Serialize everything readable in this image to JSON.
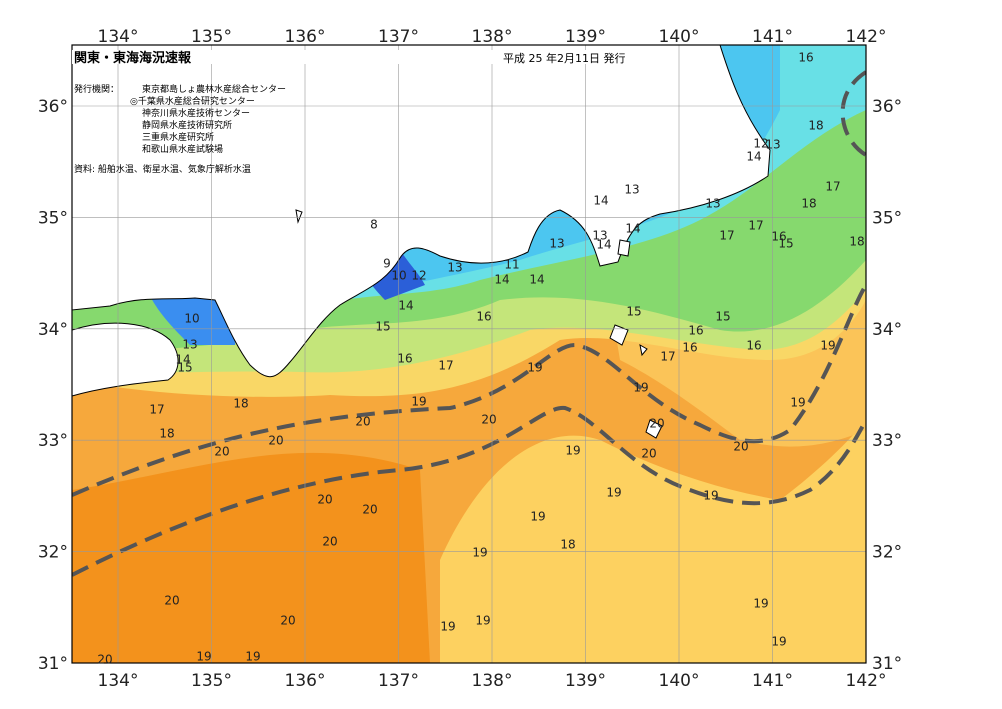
{
  "header": {
    "title": "関東・東海海況速報",
    "date": "平成 25 年2月11日 発行",
    "issuer_label": "発行機関：",
    "issuers": [
      "東京都島しょ農林水産総合センター",
      "◎千葉県水産総合研究センター",
      "神奈川県水産技術センター",
      "静岡県水産技術研究所",
      "三重県水産研究所",
      "和歌山県水産試験場"
    ],
    "source": "資料: 船舶水温、衛星水温、気象庁解析水温"
  },
  "map": {
    "lon_ticks": [
      {
        "value": 134,
        "label": "134°"
      },
      {
        "value": 135,
        "label": "135°"
      },
      {
        "value": 136,
        "label": "136°"
      },
      {
        "value": 137,
        "label": "137°"
      },
      {
        "value": 138,
        "label": "138°"
      },
      {
        "value": 139,
        "label": "139°"
      },
      {
        "value": 140,
        "label": "140°"
      },
      {
        "value": 141,
        "label": "141°"
      },
      {
        "value": 142,
        "label": "142°"
      }
    ],
    "lat_ticks": [
      {
        "value": 31,
        "label": "31°"
      },
      {
        "value": 32,
        "label": "32°"
      },
      {
        "value": 33,
        "label": "33°"
      },
      {
        "value": 34,
        "label": "34°"
      },
      {
        "value": 35,
        "label": "35°"
      },
      {
        "value": 36,
        "label": "36°"
      }
    ],
    "contour_labels": [
      16,
      18,
      12,
      13,
      14,
      17,
      18,
      13,
      14,
      13,
      13,
      13,
      14,
      14,
      17,
      17,
      16,
      15,
      18,
      8,
      9,
      10,
      12,
      13,
      11,
      14,
      14,
      14,
      16,
      15,
      15,
      15,
      16,
      16,
      16,
      17,
      19,
      16,
      17,
      19,
      19,
      19,
      19,
      18,
      17,
      18,
      10,
      13,
      14,
      15,
      20,
      20,
      20,
      20,
      20,
      19,
      20,
      20,
      19,
      19,
      20,
      20,
      19,
      20,
      18,
      19,
      20,
      20,
      19,
      19,
      19,
      19,
      20,
      19,
      19
    ]
  }
}
